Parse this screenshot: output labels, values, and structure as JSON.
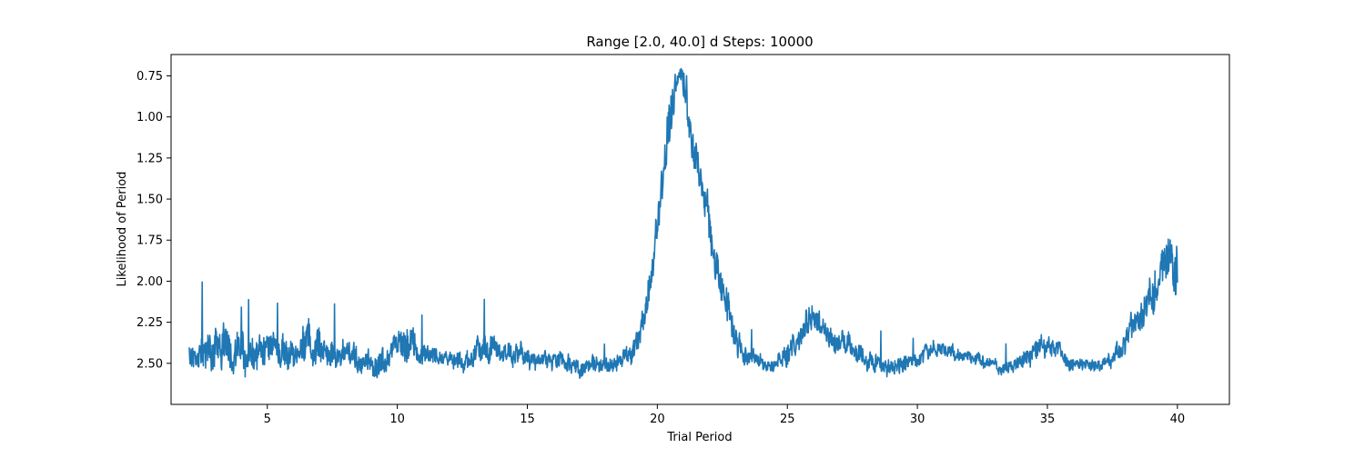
{
  "chart_data": {
    "type": "line",
    "title": "Range [2.0, 40.0] d  Steps: 10000",
    "xlabel": "Trial Period",
    "ylabel": "Likelihood of Period",
    "xlim": [
      1.3,
      42.0
    ],
    "ylim": [
      2.75,
      0.62
    ],
    "y_inverted": true,
    "grid": false,
    "x_ticks": [
      5,
      10,
      15,
      20,
      25,
      30,
      35,
      40
    ],
    "y_ticks": [
      0.75,
      1.0,
      1.25,
      1.5,
      1.75,
      2.0,
      2.25,
      2.5
    ],
    "x_tick_labels": [
      "5",
      "10",
      "15",
      "20",
      "25",
      "30",
      "35",
      "40"
    ],
    "y_tick_labels": [
      "0.75",
      "1.00",
      "1.25",
      "1.50",
      "1.75",
      "2.00",
      "2.25",
      "2.50"
    ],
    "series": [
      {
        "color": "#1f77b4",
        "x": [
          2.0,
          2.3,
          2.6,
          3.0,
          3.3,
          3.6,
          4.0,
          4.5,
          5.0,
          5.5,
          6.0,
          6.5,
          7.0,
          7.5,
          8.0,
          8.5,
          9.0,
          9.5,
          10.0,
          10.3,
          10.6,
          11.0,
          11.5,
          12.0,
          12.5,
          13.0,
          13.5,
          14.0,
          14.5,
          15.0,
          15.5,
          16.0,
          16.5,
          17.0,
          17.5,
          18.0,
          18.5,
          19.0,
          19.3,
          19.6,
          19.9,
          20.2,
          20.5,
          20.7,
          20.9,
          21.1,
          21.3,
          21.6,
          21.9,
          22.2,
          22.5,
          22.8,
          23.1,
          23.5,
          24.0,
          24.5,
          25.0,
          25.5,
          25.9,
          26.3,
          26.8,
          27.3,
          27.8,
          28.3,
          28.8,
          29.3,
          29.8,
          30.3,
          30.8,
          31.3,
          31.8,
          32.3,
          32.8,
          33.3,
          33.8,
          34.3,
          34.8,
          35.3,
          35.8,
          36.3,
          36.8,
          37.3,
          37.8,
          38.2,
          38.6,
          39.0,
          39.3,
          39.6,
          39.8,
          40.0
        ],
        "y": [
          2.42,
          2.45,
          2.4,
          2.43,
          2.38,
          2.44,
          2.42,
          2.45,
          2.43,
          2.41,
          2.44,
          2.38,
          2.43,
          2.46,
          2.44,
          2.47,
          2.5,
          2.48,
          2.4,
          2.35,
          2.38,
          2.45,
          2.47,
          2.48,
          2.49,
          2.44,
          2.4,
          2.43,
          2.46,
          2.45,
          2.47,
          2.5,
          2.49,
          2.52,
          2.51,
          2.53,
          2.5,
          2.44,
          2.35,
          2.15,
          1.8,
          1.4,
          0.98,
          0.78,
          0.72,
          0.85,
          1.1,
          1.38,
          1.58,
          1.85,
          2.05,
          2.2,
          2.38,
          2.47,
          2.5,
          2.52,
          2.45,
          2.35,
          2.22,
          2.3,
          2.36,
          2.38,
          2.44,
          2.5,
          2.53,
          2.52,
          2.48,
          2.45,
          2.42,
          2.44,
          2.46,
          2.48,
          2.52,
          2.54,
          2.5,
          2.46,
          2.4,
          2.43,
          2.47,
          2.5,
          2.52,
          2.5,
          2.42,
          2.32,
          2.2,
          2.1,
          2.02,
          1.92,
          1.9,
          1.95
        ],
        "band": [
          0.1,
          0.15,
          0.22,
          0.18,
          0.2,
          0.2,
          0.16,
          0.18,
          0.15,
          0.17,
          0.16,
          0.2,
          0.15,
          0.13,
          0.12,
          0.13,
          0.11,
          0.12,
          0.12,
          0.2,
          0.16,
          0.12,
          0.08,
          0.07,
          0.08,
          0.12,
          0.14,
          0.1,
          0.1,
          0.1,
          0.09,
          0.08,
          0.08,
          0.08,
          0.08,
          0.07,
          0.08,
          0.09,
          0.1,
          0.14,
          0.2,
          0.26,
          0.28,
          0.12,
          0.1,
          0.2,
          0.26,
          0.2,
          0.18,
          0.18,
          0.18,
          0.15,
          0.14,
          0.08,
          0.07,
          0.07,
          0.1,
          0.12,
          0.16,
          0.12,
          0.1,
          0.1,
          0.1,
          0.09,
          0.08,
          0.08,
          0.08,
          0.08,
          0.07,
          0.06,
          0.06,
          0.06,
          0.06,
          0.06,
          0.06,
          0.1,
          0.1,
          0.08,
          0.07,
          0.06,
          0.06,
          0.07,
          0.09,
          0.12,
          0.16,
          0.18,
          0.2,
          0.24,
          0.3,
          0.35
        ]
      }
    ]
  }
}
